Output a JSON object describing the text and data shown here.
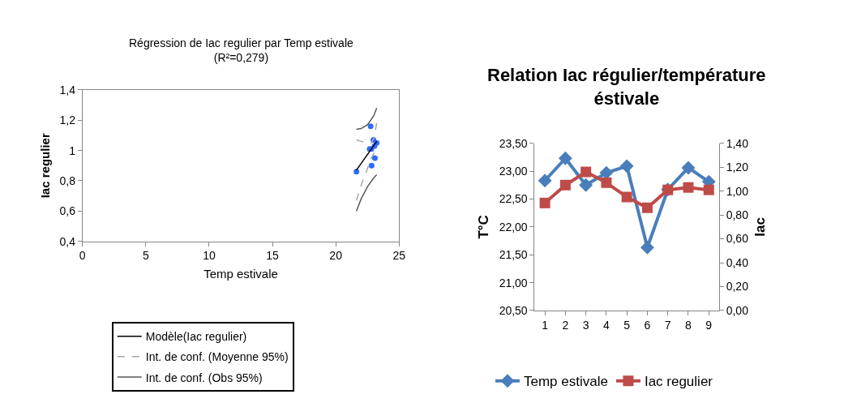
{
  "chart_data": [
    {
      "type": "scatter",
      "title": "Régression de Iac regulier par Temp estivale\n(R²=0,279)",
      "xlabel": "Temp estivale",
      "ylabel": "Iac regulier",
      "xlim": [
        0,
        25
      ],
      "xticks": [
        0,
        5,
        10,
        15,
        20,
        25
      ],
      "ylim": [
        0.4,
        1.4
      ],
      "yticks": [
        {
          "value": 0.4,
          "label": "0,4"
        },
        {
          "value": 0.6,
          "label": "0,6"
        },
        {
          "value": 0.8,
          "label": "0,8"
        },
        {
          "value": 1,
          "label": "1"
        },
        {
          "value": 1.2,
          "label": "1,2"
        },
        {
          "value": 1.4,
          "label": "1,4"
        }
      ],
      "legend": "bottom",
      "series": [
        {
          "type": "scatter",
          "marker": "circle",
          "color": "#2f6bff",
          "x": [
            22.83,
            23.23,
            22.75,
            22.97,
            23.09,
            21.63,
            22.67,
            23.06,
            22.81
          ],
          "values": [
            0.9,
            1.05,
            1.16,
            1.07,
            0.95,
            0.86,
            1.01,
            1.03,
            1.01
          ]
        },
        {
          "type": "line",
          "name": "Modèle(Iac regulier)",
          "line_style": "solid",
          "color": "#000000",
          "x": [
            21.63,
            23.23
          ],
          "values": [
            0.87,
            1.06
          ]
        },
        {
          "type": "line",
          "name": "Int. de conf. (Moyenne 95%)",
          "line_style": "dashed",
          "color": "#a6a6a6",
          "x": [
            21.63,
            22.0,
            22.5,
            22.8,
            23.0,
            23.23
          ],
          "values": [
            1.07,
            1.06,
            1.05,
            1.05,
            1.08,
            1.18
          ]
        },
        {
          "type": "line",
          "line_style": "dashed",
          "color": "#a6a6a6",
          "x": [
            21.63,
            22.0,
            22.5,
            22.8,
            23.0,
            23.23
          ],
          "values": [
            0.67,
            0.77,
            0.88,
            0.95,
            0.98,
            0.98
          ]
        },
        {
          "type": "line",
          "name": "Int. de conf. (Obs 95%)",
          "line_style": "solid",
          "color": "#595959",
          "x": [
            21.63,
            22.0,
            22.5,
            23.0,
            23.23
          ],
          "values": [
            1.14,
            1.145,
            1.17,
            1.23,
            1.28
          ]
        },
        {
          "type": "line",
          "line_style": "solid",
          "color": "#595959",
          "x": [
            21.63,
            22.0,
            22.5,
            23.0,
            23.23
          ],
          "values": [
            0.6,
            0.68,
            0.76,
            0.82,
            0.84
          ]
        }
      ]
    },
    {
      "type": "line",
      "title": "Relation Iac régulier/température\néstivale",
      "ylabel": "T°C",
      "y2label": "Iac",
      "categories": [
        "1",
        "2",
        "3",
        "4",
        "5",
        "6",
        "7",
        "8",
        "9"
      ],
      "ylim": [
        20.5,
        23.5
      ],
      "yticks": [
        {
          "value": 20.5,
          "label": "20,50"
        },
        {
          "value": 21,
          "label": "21,00"
        },
        {
          "value": 21.5,
          "label": "21,50"
        },
        {
          "value": 22,
          "label": "22,00"
        },
        {
          "value": 22.5,
          "label": "22,50"
        },
        {
          "value": 23,
          "label": "23,00"
        },
        {
          "value": 23.5,
          "label": "23,50"
        }
      ],
      "y2lim": [
        0,
        1.4
      ],
      "y2ticks": [
        {
          "value": 0,
          "label": "0,00"
        },
        {
          "value": 0.2,
          "label": "0,20"
        },
        {
          "value": 0.4,
          "label": "0,40"
        },
        {
          "value": 0.6,
          "label": "0,60"
        },
        {
          "value": 0.8,
          "label": "0,80"
        },
        {
          "value": 1.0,
          "label": "1,00"
        },
        {
          "value": 1.2,
          "label": "1,20"
        },
        {
          "value": 1.4,
          "label": "1,40"
        }
      ],
      "legend": "bottom",
      "series": [
        {
          "name": "Temp estivale",
          "marker": "diamond",
          "color": "#4a7ebb",
          "values": [
            22.83,
            23.23,
            22.75,
            22.97,
            23.09,
            21.63,
            22.67,
            23.06,
            22.81
          ]
        },
        {
          "name": "Iac regulier",
          "marker": "square",
          "axis": "y2",
          "color": "#be4b48",
          "values": [
            0.9,
            1.05,
            1.16,
            1.07,
            0.95,
            0.86,
            1.01,
            1.03,
            1.01
          ]
        }
      ]
    }
  ]
}
